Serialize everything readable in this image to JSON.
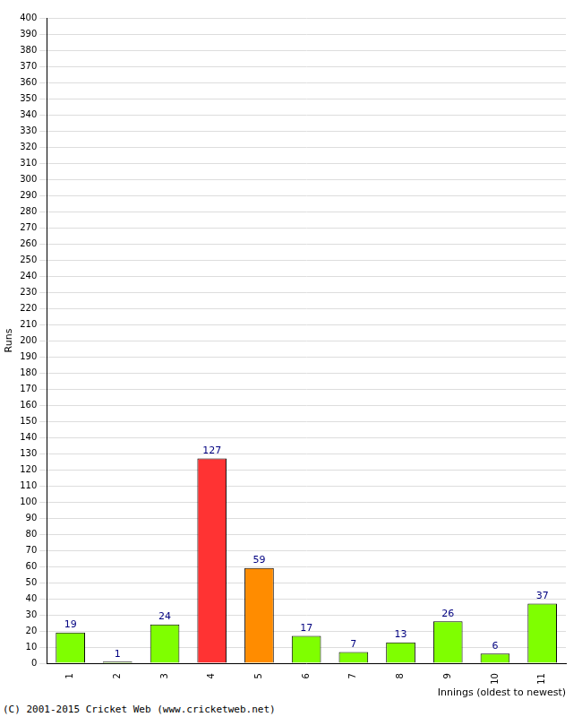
{
  "chart_data": {
    "type": "bar",
    "x_label": "Innings (oldest to newest)",
    "y_label": "Runs",
    "annotations": [
      "(C) 2001-2015 Cricket Web (www.cricketweb.net)"
    ],
    "categories": [
      "1",
      "2",
      "3",
      "4",
      "5",
      "6",
      "7",
      "8",
      "9",
      "10",
      "11"
    ],
    "values": [
      19,
      1,
      24,
      127,
      59,
      17,
      7,
      13,
      26,
      6,
      37
    ],
    "colors": [
      "#7fff00",
      "#7fff00",
      "#7fff00",
      "#ff3333",
      "#ff8c00",
      "#7fff00",
      "#7fff00",
      "#7fff00",
      "#7fff00",
      "#7fff00",
      "#7fff00"
    ],
    "ylim": [
      0,
      400
    ],
    "yticks": [
      0,
      10,
      20,
      30,
      40,
      50,
      60,
      70,
      80,
      90,
      100,
      110,
      120,
      130,
      140,
      150,
      160,
      170,
      180,
      190,
      200,
      210,
      220,
      230,
      240,
      250,
      260,
      270,
      280,
      290,
      300,
      310,
      320,
      330,
      340,
      350,
      360,
      370,
      380,
      390,
      400
    ],
    "grid": true,
    "data_labels": true
  }
}
